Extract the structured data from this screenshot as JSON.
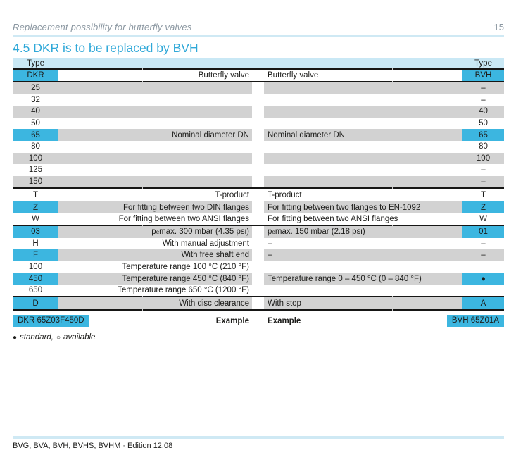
{
  "page": {
    "running_title": "Replacement possibility for butterfly valves",
    "page_number": "15",
    "section_title": "4.5 DKR is to be replaced by BVH",
    "footer": "BVG, BVA, BVH, BVHS, BVHM · Edition 12.08",
    "legend": {
      "standard_glyph": "●",
      "standard_label": "standard,",
      "available_glyph": "○",
      "available_label": "available"
    }
  },
  "colors": {
    "accent_cyan": "#3cb6e0",
    "light_cyan": "#c9e8f5",
    "rule_cyan": "#cfe9f4",
    "bar_gray": "#d2d2d2",
    "title_cyan": "#2fa8d8",
    "header_gray": "#8c98a2"
  },
  "table": {
    "type_label_left": "Type",
    "type_label_right": "Type",
    "header_row": {
      "left_code": "DKR",
      "left_desc": "Butterfly valve",
      "right_desc": "Butterfly valve",
      "right_code": "BVH"
    },
    "rows": [
      {
        "left_code": "25",
        "left_code_highlight": false,
        "left_desc": "",
        "right_desc": "",
        "right_code": "–",
        "right_code_highlight": false,
        "band": "gray",
        "separator_before": null
      },
      {
        "left_code": "32",
        "left_code_highlight": false,
        "left_desc": "",
        "right_desc": "",
        "right_code": "–",
        "right_code_highlight": false,
        "band": "white",
        "separator_before": null
      },
      {
        "left_code": "40",
        "left_code_highlight": false,
        "left_desc": "",
        "right_desc": "",
        "right_code": "40",
        "right_code_highlight": false,
        "band": "gray",
        "separator_before": null
      },
      {
        "left_code": "50",
        "left_code_highlight": false,
        "left_desc": "",
        "right_desc": "",
        "right_code": "50",
        "right_code_highlight": false,
        "band": "white",
        "separator_before": null
      },
      {
        "left_code": "65",
        "left_code_highlight": true,
        "left_desc": "Nominal diameter DN",
        "right_desc": "Nominal diameter DN",
        "right_code": "65",
        "right_code_highlight": true,
        "band": "gray",
        "separator_before": null
      },
      {
        "left_code": "80",
        "left_code_highlight": false,
        "left_desc": "",
        "right_desc": "",
        "right_code": "80",
        "right_code_highlight": false,
        "band": "white",
        "separator_before": null
      },
      {
        "left_code": "100",
        "left_code_highlight": false,
        "left_desc": "",
        "right_desc": "",
        "right_code": "100",
        "right_code_highlight": false,
        "band": "gray",
        "separator_before": null
      },
      {
        "left_code": "125",
        "left_code_highlight": false,
        "left_desc": "",
        "right_desc": "",
        "right_code": "–",
        "right_code_highlight": false,
        "band": "white",
        "separator_before": null
      },
      {
        "left_code": "150",
        "left_code_highlight": false,
        "left_desc": "",
        "right_desc": "",
        "right_code": "–",
        "right_code_highlight": false,
        "band": "gray",
        "separator_before": null
      },
      {
        "left_code": "T",
        "left_code_highlight": false,
        "left_desc": "T-product",
        "right_desc": "T-product",
        "right_code": "T",
        "right_code_highlight": false,
        "band": "white",
        "separator_before": "thick"
      },
      {
        "left_code": "Z",
        "left_code_highlight": true,
        "left_desc": "For fitting between two DIN flanges",
        "right_desc": "For fitting between two flanges to EN-1092",
        "right_code": "Z",
        "right_code_highlight": true,
        "band": "gray",
        "separator_before": "thin"
      },
      {
        "left_code": "W",
        "left_code_highlight": false,
        "left_desc": "For fitting between two ANSI flanges",
        "right_desc": "For fitting between two ANSI flanges",
        "right_code": "W",
        "right_code_highlight": false,
        "band": "white",
        "separator_before": null
      },
      {
        "left_code": "03",
        "left_code_highlight": true,
        "left_desc": "p<sub>e</sub> max. 300 mbar (4.35 psi)",
        "right_desc": "p<sub>e</sub> max. 150 mbar (2.18 psi)",
        "right_code": "01",
        "right_code_highlight": true,
        "band": "gray",
        "separator_before": "thin"
      },
      {
        "left_code": "H",
        "left_code_highlight": false,
        "left_desc": "With manual adjustment",
        "right_desc": "–",
        "right_code": "–",
        "right_code_highlight": false,
        "band": "white",
        "separator_before": null
      },
      {
        "left_code": "F",
        "left_code_highlight": true,
        "left_desc": "With free shaft end",
        "right_desc": "–",
        "right_code": "–",
        "right_code_highlight": false,
        "band": "gray",
        "separator_before": null
      },
      {
        "left_code": "100",
        "left_code_highlight": false,
        "left_desc": "Temperature range 100 °C (210 °F)",
        "right_desc": "",
        "right_code": "",
        "right_code_highlight": false,
        "band": "white",
        "separator_before": null
      },
      {
        "left_code": "450",
        "left_code_highlight": true,
        "left_desc": "Temperature range 450 °C (840 °F)",
        "right_desc": "Temperature range 0 – 450 °C (0 – 840 °F)",
        "right_code": "●",
        "right_code_highlight": true,
        "band": "gray",
        "separator_before": null
      },
      {
        "left_code": "650",
        "left_code_highlight": false,
        "left_desc": "Temperature range 650 °C (1200 °F)",
        "right_desc": "",
        "right_code": "",
        "right_code_highlight": false,
        "band": "white",
        "separator_before": null
      },
      {
        "left_code": "D",
        "left_code_highlight": true,
        "left_desc": "With disc clearance",
        "right_desc": "With stop",
        "right_code": "A",
        "right_code_highlight": true,
        "band": "gray",
        "separator_before": "thick"
      }
    ],
    "example_row": {
      "left_code": "DKR 65Z03F450D",
      "left_label": "Example",
      "right_label": "Example",
      "right_code": "BVH 65Z01A"
    }
  }
}
